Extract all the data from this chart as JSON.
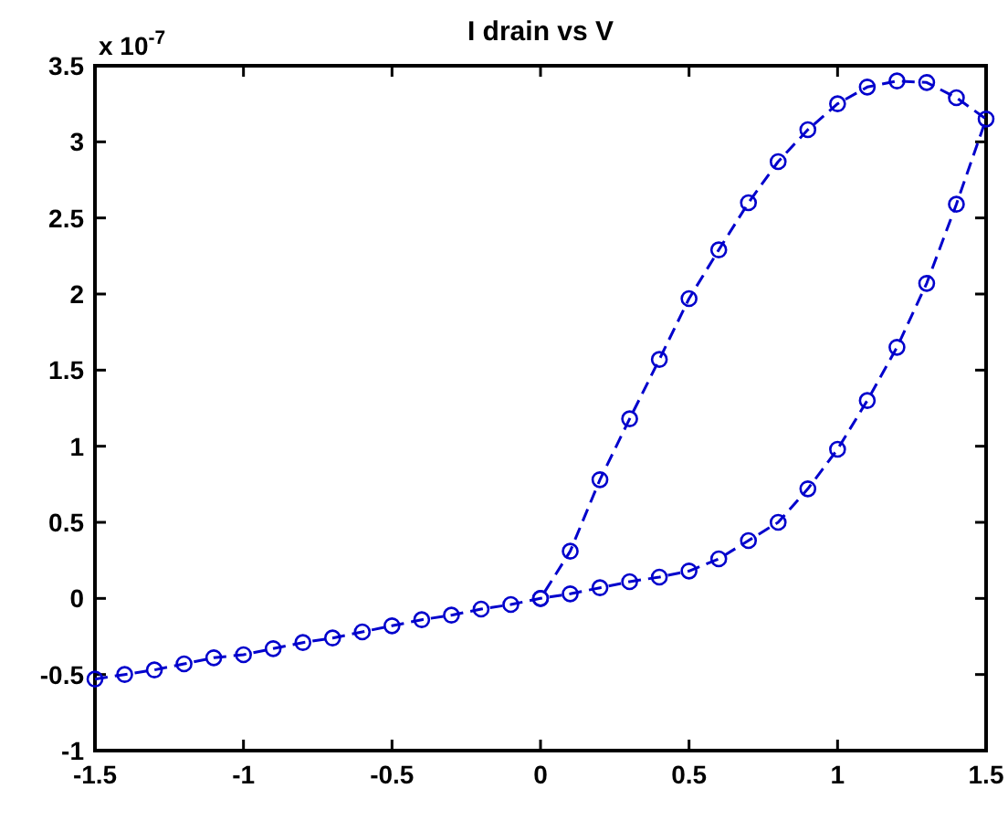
{
  "chart_data": {
    "type": "line",
    "title": "I drain vs V",
    "annotations": [
      "x 10$^{-7}$"
    ],
    "xlim": [
      -1.5,
      1.5
    ],
    "xticks": [
      -1.5,
      -1,
      -0.5,
      0,
      0.5,
      1,
      1.5
    ],
    "ylim": [
      -1,
      3.5
    ],
    "yticks": [
      -1,
      -0.5,
      0,
      0.5,
      1,
      1.5,
      2,
      2.5,
      3,
      3.5
    ],
    "grid": false,
    "marker": "circle",
    "line_style": "dashed",
    "series": [
      {
        "color": "#0000cc",
        "x": [
          -1.5,
          -1.4,
          -1.3,
          -1.2,
          -1.1,
          -1.0,
          -0.9,
          -0.8,
          -0.7,
          -0.6,
          -0.5,
          -0.4,
          -0.3,
          -0.2,
          -0.1,
          0,
          0.1,
          0.2,
          0.3,
          0.4,
          0.5,
          0.6,
          0.7,
          0.8,
          0.9,
          1.0,
          1.1,
          1.2,
          1.3,
          1.4,
          1.5,
          1.4,
          1.3,
          1.2,
          1.1,
          1.0,
          0.9,
          0.8,
          0.7,
          0.6,
          0.5,
          0.4,
          0.3,
          0.2,
          0.1,
          0
        ],
        "values": [
          -0.53,
          -0.5,
          -0.47,
          -0.43,
          -0.39,
          -0.37,
          -0.33,
          -0.29,
          -0.26,
          -0.22,
          -0.18,
          -0.14,
          -0.11,
          -0.07,
          -0.04,
          0,
          0.03,
          0.07,
          0.11,
          0.14,
          0.18,
          0.26,
          0.38,
          0.5,
          0.72,
          0.98,
          1.3,
          1.65,
          2.07,
          2.59,
          3.15,
          3.29,
          3.39,
          3.4,
          3.36,
          3.25,
          3.08,
          2.87,
          2.6,
          2.29,
          1.97,
          1.57,
          1.18,
          0.78,
          0.31,
          0
        ]
      }
    ]
  }
}
